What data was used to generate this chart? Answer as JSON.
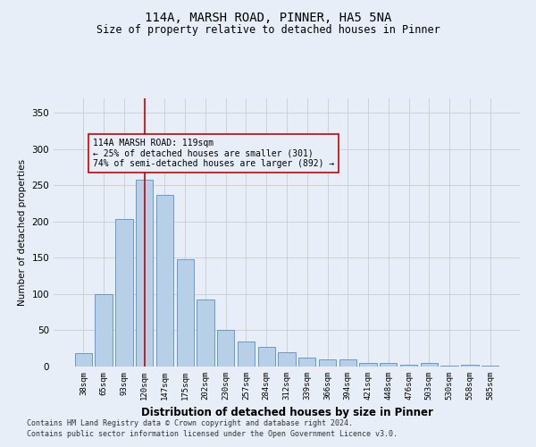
{
  "title_line1": "114A, MARSH ROAD, PINNER, HA5 5NA",
  "title_line2": "Size of property relative to detached houses in Pinner",
  "xlabel": "Distribution of detached houses by size in Pinner",
  "ylabel": "Number of detached properties",
  "categories": [
    "38sqm",
    "65sqm",
    "93sqm",
    "120sqm",
    "147sqm",
    "175sqm",
    "202sqm",
    "230sqm",
    "257sqm",
    "284sqm",
    "312sqm",
    "339sqm",
    "366sqm",
    "394sqm",
    "421sqm",
    "448sqm",
    "476sqm",
    "503sqm",
    "530sqm",
    "558sqm",
    "585sqm"
  ],
  "values": [
    18,
    100,
    203,
    258,
    237,
    148,
    93,
    50,
    35,
    27,
    20,
    12,
    10,
    10,
    5,
    5,
    3,
    5,
    1,
    2,
    1
  ],
  "bar_color": "#b8cfe8",
  "bar_edge_color": "#6699cc",
  "bg_color": "#e8eef8",
  "vline_color": "#cc0000",
  "vline_x_index": 3,
  "annotation_text": "114A MARSH ROAD: 119sqm\n← 25% of detached houses are smaller (301)\n74% of semi-detached houses are larger (892) →",
  "annotation_box_color": "#cc0000",
  "ylim": [
    0,
    370
  ],
  "yticks": [
    0,
    50,
    100,
    150,
    200,
    250,
    300,
    350
  ],
  "footer_line1": "Contains HM Land Registry data © Crown copyright and database right 2024.",
  "footer_line2": "Contains public sector information licensed under the Open Government Licence v3.0."
}
